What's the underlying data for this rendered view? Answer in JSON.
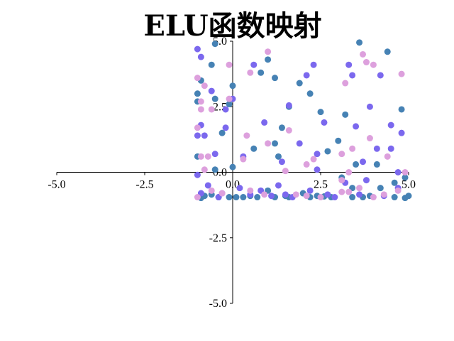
{
  "chart_data": {
    "type": "scatter",
    "title": "ELU函数映射",
    "xlabel": "",
    "ylabel": "",
    "xlim": [
      -5.0,
      5.0
    ],
    "ylim": [
      -5.0,
      5.0
    ],
    "x_ticks": [
      "-5.0",
      "-2.5",
      "0.0",
      "2.5",
      "5.0"
    ],
    "y_ticks": [
      "-5.0",
      "-2.5",
      "0.0",
      "2.5",
      "5.0"
    ],
    "grid": false,
    "spines": "centered at origin",
    "colors": {
      "steel": "#4682B4",
      "purple": "#7B68EE",
      "plum": "#DDA0DD"
    },
    "series": [
      {
        "color": "#4682B4",
        "points": [
          [
            -0.5,
            4.9
          ],
          [
            3.6,
            4.95
          ],
          [
            4.4,
            4.6
          ],
          [
            -0.6,
            4.1
          ],
          [
            1.0,
            4.3
          ],
          [
            0.8,
            3.8
          ],
          [
            1.2,
            3.6
          ],
          [
            0.0,
            3.3
          ],
          [
            1.9,
            3.4
          ],
          [
            -0.9,
            3.5
          ],
          [
            2.2,
            3.0
          ],
          [
            -0.1,
            2.6
          ],
          [
            -0.5,
            2.8
          ],
          [
            1.6,
            2.5
          ],
          [
            2.5,
            2.3
          ],
          [
            3.2,
            2.2
          ],
          [
            4.8,
            2.4
          ],
          [
            1.4,
            1.7
          ],
          [
            -0.3,
            1.5
          ],
          [
            3.0,
            1.2
          ],
          [
            1.2,
            1.1
          ],
          [
            2.7,
            0.8
          ],
          [
            0.0,
            0.2
          ],
          [
            3.5,
            0.3
          ],
          [
            4.1,
            0.3
          ],
          [
            1.3,
            0.6
          ],
          [
            0.6,
            0.9
          ],
          [
            -0.5,
            0.1
          ],
          [
            3.1,
            -0.2
          ],
          [
            4.9,
            -0.2
          ],
          [
            4.2,
            -0.6
          ],
          [
            4.6,
            -0.4
          ],
          [
            1.0,
            -0.7
          ],
          [
            3.4,
            -0.6
          ],
          [
            2.0,
            -0.8
          ],
          [
            -0.8,
            -0.9
          ],
          [
            -0.6,
            -0.85
          ],
          [
            0.1,
            -0.95
          ],
          [
            0.3,
            -0.95
          ],
          [
            0.5,
            -0.9
          ],
          [
            1.2,
            -0.95
          ],
          [
            1.6,
            -0.95
          ],
          [
            2.4,
            -0.9
          ],
          [
            2.8,
            -0.95
          ],
          [
            3.4,
            -0.95
          ],
          [
            3.9,
            -0.9
          ],
          [
            4.6,
            -0.95
          ],
          [
            5.0,
            -0.9
          ],
          [
            -1.0,
            3.0
          ],
          [
            -1.0,
            2.7
          ],
          [
            -1.0,
            0.6
          ],
          [
            -0.1,
            -0.95
          ],
          [
            2.2,
            -0.95
          ],
          [
            1.5,
            -0.9
          ],
          [
            -0.9,
            -0.98
          ],
          [
            -0.4,
            -0.95
          ],
          [
            3.7,
            -0.95
          ],
          [
            4.9,
            -0.98
          ],
          [
            0.7,
            -0.95
          ],
          [
            2.6,
            -0.92
          ]
        ]
      },
      {
        "color": "#7B68EE",
        "points": [
          [
            -1.0,
            4.7
          ],
          [
            -0.9,
            4.4
          ],
          [
            0.6,
            4.1
          ],
          [
            2.3,
            4.1
          ],
          [
            3.3,
            4.1
          ],
          [
            3.4,
            3.7
          ],
          [
            4.2,
            3.7
          ],
          [
            2.1,
            3.7
          ],
          [
            -0.6,
            3.1
          ],
          [
            0.0,
            2.8
          ],
          [
            -0.2,
            2.4
          ],
          [
            1.6,
            2.55
          ],
          [
            3.9,
            2.5
          ],
          [
            4.5,
            1.8
          ],
          [
            -0.9,
            1.8
          ],
          [
            2.6,
            1.9
          ],
          [
            -0.2,
            1.7
          ],
          [
            3.5,
            1.75
          ],
          [
            -1.0,
            1.4
          ],
          [
            -0.8,
            1.4
          ],
          [
            0.9,
            1.9
          ],
          [
            1.9,
            1.1
          ],
          [
            4.8,
            1.5
          ],
          [
            0.3,
            0.6
          ],
          [
            -0.5,
            0.7
          ],
          [
            1.4,
            0.4
          ],
          [
            2.4,
            0.7
          ],
          [
            4.1,
            0.9
          ],
          [
            4.5,
            0.9
          ],
          [
            3.7,
            0.4
          ],
          [
            -1.0,
            -0.1
          ],
          [
            4.7,
            0.0
          ],
          [
            3.2,
            -0.4
          ],
          [
            2.4,
            0.1
          ],
          [
            0.8,
            -0.7
          ],
          [
            1.5,
            -0.85
          ],
          [
            -0.7,
            -0.5
          ],
          [
            -0.3,
            -0.8
          ],
          [
            1.7,
            -0.95
          ],
          [
            2.9,
            -0.95
          ],
          [
            3.6,
            -0.85
          ],
          [
            4.3,
            -0.9
          ],
          [
            0.2,
            -0.6
          ],
          [
            1.3,
            -0.5
          ],
          [
            -0.9,
            -0.8
          ],
          [
            2.2,
            -0.7
          ],
          [
            4.7,
            -0.6
          ],
          [
            0.5,
            -0.85
          ],
          [
            3.8,
            -0.3
          ],
          [
            -0.4,
            -0.95
          ],
          [
            1.1,
            -0.9
          ],
          [
            2.7,
            -0.85
          ]
        ]
      },
      {
        "color": "#DDA0DD",
        "points": [
          [
            1.0,
            4.6
          ],
          [
            3.7,
            4.5
          ],
          [
            3.8,
            4.2
          ],
          [
            4.0,
            4.1
          ],
          [
            -0.1,
            4.1
          ],
          [
            0.5,
            3.8
          ],
          [
            4.8,
            3.75
          ],
          [
            3.2,
            3.4
          ],
          [
            -1.0,
            3.6
          ],
          [
            -0.8,
            3.3
          ],
          [
            -0.9,
            2.7
          ],
          [
            -0.9,
            2.4
          ],
          [
            -0.6,
            2.4
          ],
          [
            -0.1,
            2.8
          ],
          [
            1.6,
            1.6
          ],
          [
            0.4,
            1.4
          ],
          [
            3.9,
            1.3
          ],
          [
            -1.0,
            1.7
          ],
          [
            -0.9,
            0.6
          ],
          [
            -0.7,
            0.6
          ],
          [
            0.3,
            0.5
          ],
          [
            1.0,
            1.1
          ],
          [
            2.3,
            0.5
          ],
          [
            3.1,
            0.7
          ],
          [
            3.4,
            0.9
          ],
          [
            4.4,
            0.6
          ],
          [
            -0.8,
            0.1
          ],
          [
            3.3,
            0.0
          ],
          [
            2.1,
            0.3
          ],
          [
            1.5,
            0.05
          ],
          [
            4.9,
            0.0
          ],
          [
            3.1,
            -0.3
          ],
          [
            -0.3,
            -0.8
          ],
          [
            0.5,
            -0.7
          ],
          [
            1.8,
            -0.85
          ],
          [
            2.5,
            -0.95
          ],
          [
            3.1,
            -0.75
          ],
          [
            3.3,
            -0.75
          ],
          [
            4.0,
            -0.95
          ],
          [
            4.7,
            -0.7
          ],
          [
            0.9,
            -0.85
          ],
          [
            2.1,
            -0.9
          ],
          [
            -0.6,
            -0.7
          ],
          [
            -1.0,
            -0.95
          ],
          [
            3.6,
            -0.6
          ],
          [
            4.3,
            -0.85
          ]
        ]
      }
    ]
  }
}
